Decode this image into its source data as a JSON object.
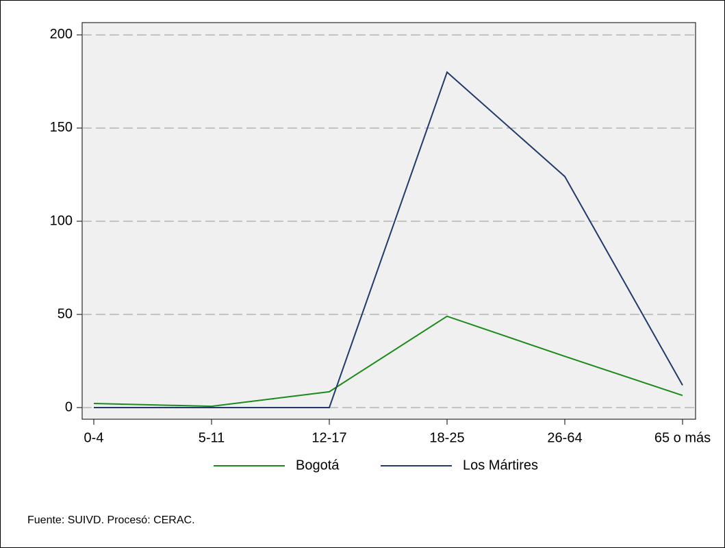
{
  "chart_data": {
    "type": "line",
    "categories": [
      "0-4",
      "5-11",
      "12-17",
      "18-25",
      "26-64",
      "65 o más"
    ],
    "series": [
      {
        "name": "Bogotá",
        "color": "#1a8a1a",
        "values": [
          2.2,
          0.7,
          8.5,
          49,
          27.5,
          6.5
        ]
      },
      {
        "name": "Los Mártires",
        "color": "#1f3a6b",
        "values": [
          0,
          0,
          0,
          180,
          124,
          12
        ]
      }
    ],
    "ylim": [
      -6.25,
      206.6
    ],
    "yticks": [
      0,
      50,
      100,
      150,
      200
    ],
    "grid": true,
    "legend": "bottom",
    "note": "Fuente: SUIVD. Procesó: CERAC."
  }
}
